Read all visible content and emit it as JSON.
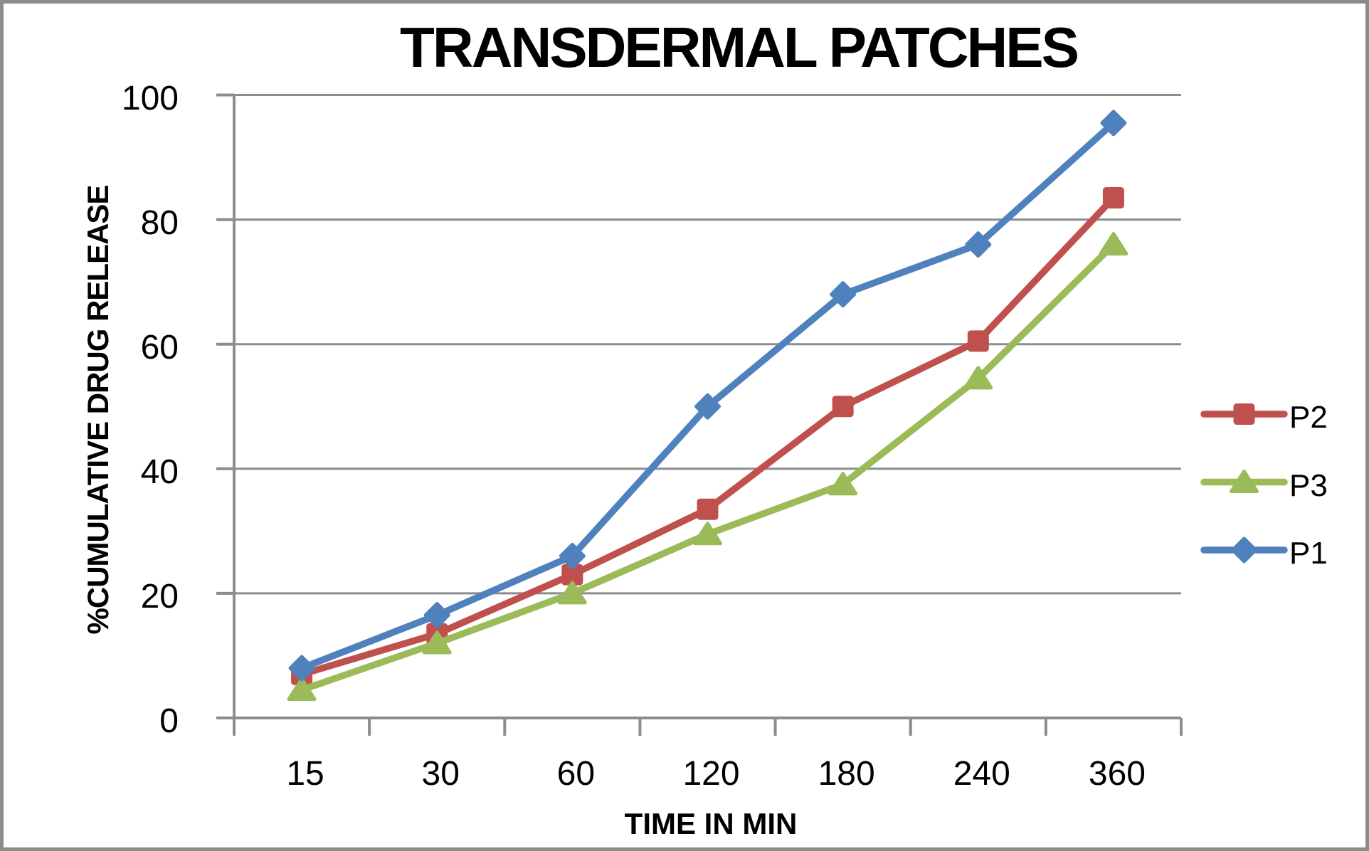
{
  "chart_data": {
    "type": "line",
    "title": "TRANSDERMAL PATCHES",
    "xlabel": "TIME IN MIN",
    "ylabel": "%CUMULATIVE DRUG RELEASE",
    "categories": [
      "15",
      "30",
      "60",
      "120",
      "180",
      "240",
      "360"
    ],
    "y_ticks": [
      0,
      20,
      40,
      60,
      80,
      100
    ],
    "ylim": [
      0,
      100
    ],
    "grid": "horizontal",
    "legend_position": "right",
    "legend_order": [
      "P2",
      "P3",
      "P1"
    ],
    "series": [
      {
        "name": "P2",
        "marker": "square",
        "color": "#C0504D",
        "values": [
          7,
          13.5,
          23,
          33.5,
          50,
          60.5,
          83.5
        ]
      },
      {
        "name": "P3",
        "marker": "triangle",
        "color": "#9BBB59",
        "values": [
          4.5,
          12,
          20,
          29.5,
          37.5,
          54.5,
          76
        ]
      },
      {
        "name": "P1",
        "marker": "diamond",
        "color": "#4F81BD",
        "values": [
          8,
          16.5,
          26,
          50,
          68,
          76,
          95.5
        ]
      }
    ],
    "colors": {
      "grid": "#8C8C8C",
      "axis": "#8C8C8C",
      "frame": "#8C8C8C",
      "text": "#000000"
    }
  }
}
